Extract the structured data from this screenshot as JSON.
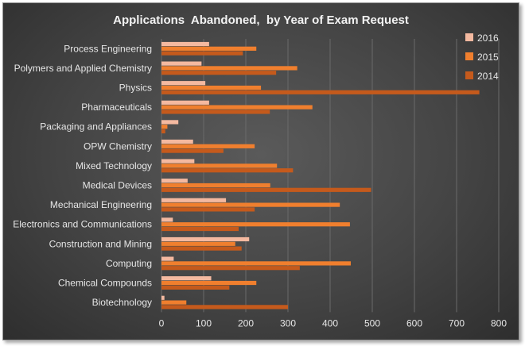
{
  "chart_data": {
    "type": "bar",
    "orientation": "horizontal",
    "title": "Applications  Abandoned,  by Year of Exam Request",
    "categories": [
      "Process Engineering",
      "Polymers and Applied Chemistry",
      "Physics",
      "Pharmaceuticals",
      "Packaging and Appliances",
      "OPW Chemistry",
      "Mixed Technology",
      "Medical Devices",
      "Mechanical Engineering",
      "Electronics and Communications",
      "Construction and Mining",
      "Computing",
      "Chemical Compounds",
      "Biotechnology"
    ],
    "series": [
      {
        "name": "2016",
        "color": "#f4b9a0",
        "values": [
          113,
          95,
          104,
          113,
          40,
          75,
          78,
          62,
          153,
          27,
          208,
          29,
          118,
          7
        ]
      },
      {
        "name": "2015",
        "color": "#f07f2e",
        "values": [
          225,
          322,
          236,
          358,
          14,
          221,
          274,
          258,
          423,
          447,
          175,
          449,
          225,
          59
        ]
      },
      {
        "name": "2014",
        "color": "#c55a1c",
        "values": [
          193,
          272,
          754,
          257,
          9,
          147,
          312,
          497,
          221,
          183,
          190,
          328,
          161,
          300
        ]
      }
    ],
    "xlim": [
      0,
      800
    ],
    "xticks": [
      0,
      100,
      200,
      300,
      400,
      500,
      600,
      700,
      800
    ],
    "legend_order": [
      "2016",
      "2015",
      "2014"
    ],
    "legend": "right",
    "grid": "vertical"
  }
}
